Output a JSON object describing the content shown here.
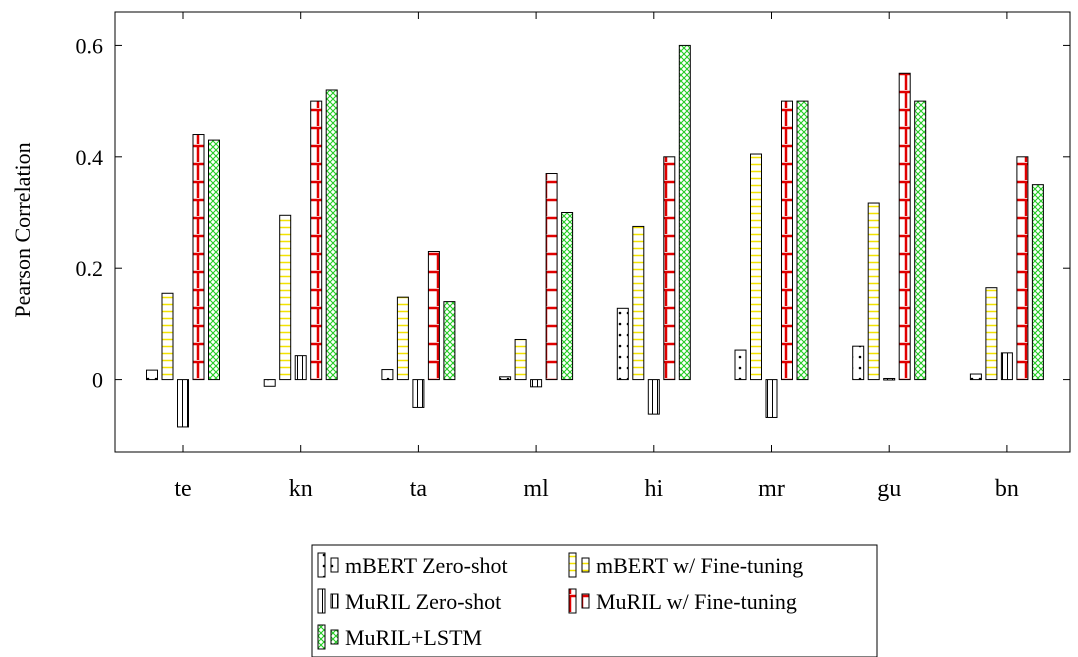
{
  "chart_data": {
    "type": "bar",
    "title": "",
    "xlabel": "",
    "ylabel": "Pearson Correlation",
    "ylim": [
      -0.13,
      0.66
    ],
    "yticks": [
      0,
      0.2,
      0.4,
      0.6
    ],
    "ytick_labels": [
      "0",
      "0.2",
      "0.4",
      "0.6"
    ],
    "grid": false,
    "legend_position": "bottom-center",
    "categories": [
      "te",
      "kn",
      "ta",
      "ml",
      "hi",
      "mr",
      "gu",
      "bn"
    ],
    "series": [
      {
        "name": "mBERT Zero-shot",
        "pattern": "dots",
        "color": "#000000",
        "values": [
          0.017,
          -0.012,
          0.018,
          0.005,
          0.128,
          0.053,
          0.06,
          0.01
        ]
      },
      {
        "name": "mBERT w/ Fine-tuning",
        "pattern": "horizontal-lines",
        "color": "#f2e200",
        "values": [
          0.155,
          0.295,
          0.148,
          0.072,
          0.275,
          0.405,
          0.317,
          0.165
        ]
      },
      {
        "name": "MuRIL Zero-shot",
        "pattern": "vertical-lines",
        "color": "#000000",
        "values": [
          -0.085,
          0.043,
          -0.05,
          -0.013,
          -0.062,
          -0.068,
          0.002,
          0.048
        ]
      },
      {
        "name": "MuRIL w/ Fine-tuning",
        "pattern": "bricks",
        "color": "#e00000",
        "values": [
          0.44,
          0.5,
          0.23,
          0.37,
          0.4,
          0.5,
          0.55,
          0.4
        ]
      },
      {
        "name": "MuRIL+LSTM",
        "pattern": "crosshatch",
        "color": "#22cc22",
        "values": [
          0.43,
          0.52,
          0.14,
          0.3,
          0.6,
          0.5,
          0.5,
          0.35
        ]
      }
    ]
  }
}
